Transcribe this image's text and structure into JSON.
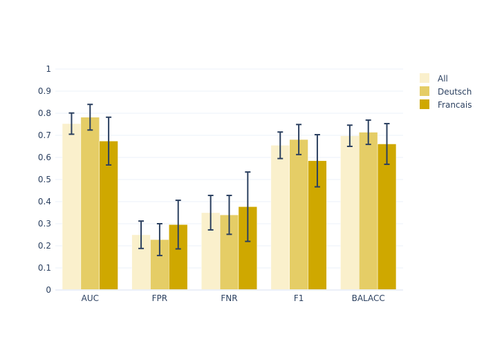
{
  "chart_data": {
    "type": "bar",
    "title": "",
    "xlabel": "",
    "ylabel": "",
    "categories": [
      "AUC",
      "FPR",
      "FNR",
      "F1",
      "BALACC"
    ],
    "ylim": [
      0,
      1
    ],
    "yticks": [
      "0",
      "0.1",
      "0.2",
      "0.3",
      "0.4",
      "0.5",
      "0.6",
      "0.7",
      "0.8",
      "0.9",
      "1"
    ],
    "grid": true,
    "legend_position": "top-right",
    "series": [
      {
        "name": "All",
        "color": "#faf0cc",
        "values": [
          0.753,
          0.25,
          0.35,
          0.655,
          0.698
        ],
        "errors": [
          0.048,
          0.062,
          0.078,
          0.06,
          0.048
        ]
      },
      {
        "name": "Deutsch",
        "color": "#e5cd66",
        "values": [
          0.782,
          0.228,
          0.34,
          0.681,
          0.714
        ],
        "errors": [
          0.058,
          0.072,
          0.088,
          0.068,
          0.055
        ]
      },
      {
        "name": "Francais",
        "color": "#cfa800",
        "values": [
          0.674,
          0.296,
          0.377,
          0.585,
          0.661
        ],
        "errors": [
          0.108,
          0.11,
          0.157,
          0.118,
          0.092
        ]
      }
    ],
    "error_bar_color": "#2a3f5f"
  }
}
